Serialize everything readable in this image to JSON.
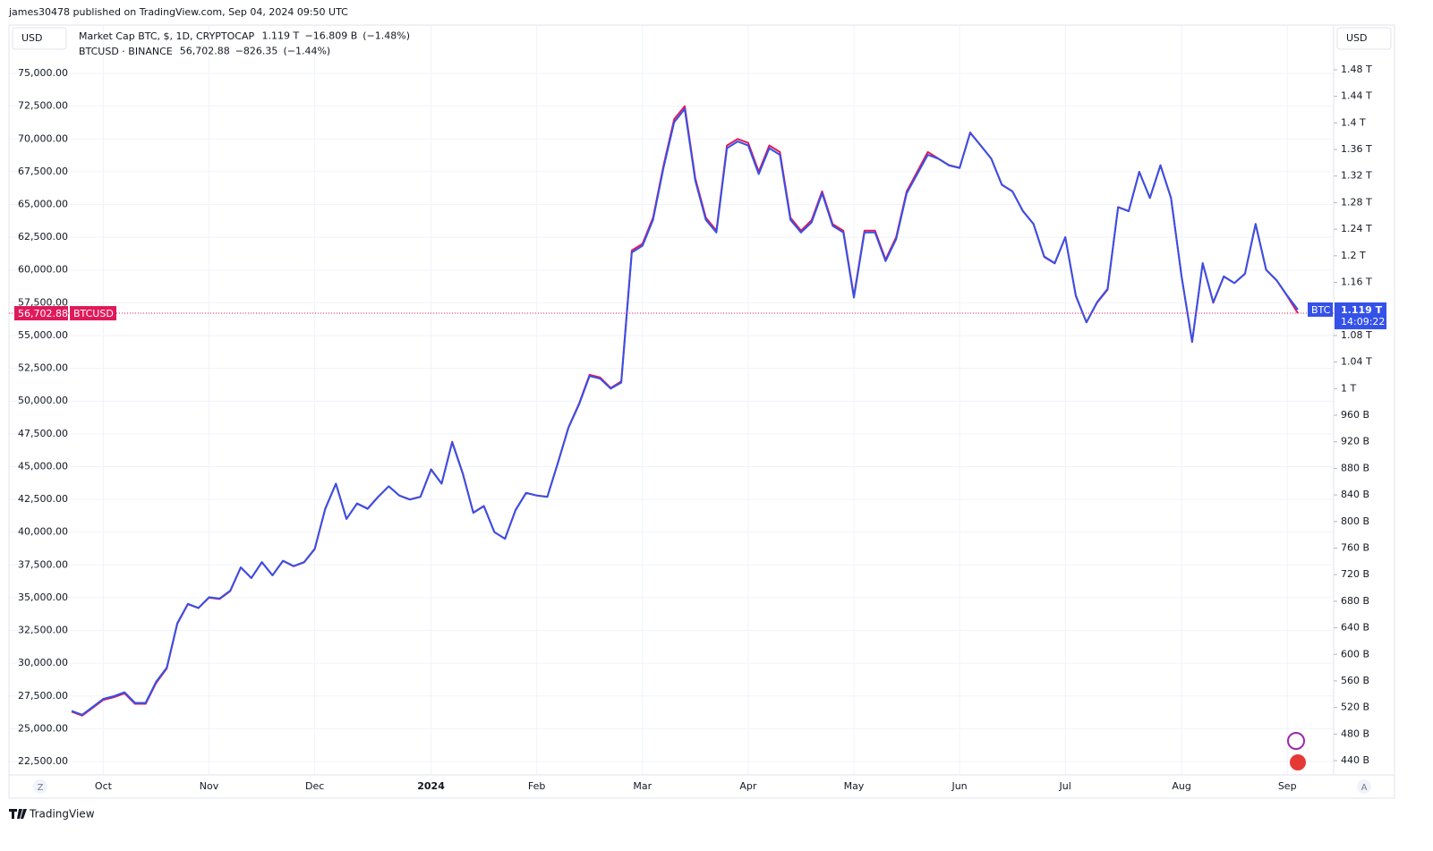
{
  "header": {
    "publisher": "james30478 published on TradingView.com, Sep 04, 2024 09:50 UTC",
    "footer": "TradingView"
  },
  "ui": {
    "left_currency": "USD",
    "right_currency": "USD",
    "left_scale_button": "Z",
    "right_scale_button": "A"
  },
  "legend": {
    "mcap_value": "1.119 T",
    "mcap_change": "−16.809 B",
    "mcap_pct": "(−1.48%)",
    "btc_value": "56,702.88",
    "btc_change": "−826.35",
    "btc_pct": "(−1.44%)"
  },
  "price_tags": {
    "left_value": "56,702.88",
    "left_name": "BTCUSD",
    "right_name": "BTC",
    "right_value": "1.119 T",
    "countdown": "14:09:22"
  },
  "chart_data": {
    "type": "line",
    "grid": true,
    "categories": [
      null,
      null,
      null,
      "Oct",
      null,
      null,
      null,
      null,
      null,
      null,
      null,
      null,
      null,
      "Nov",
      null,
      null,
      null,
      null,
      null,
      null,
      null,
      null,
      null,
      "Dec",
      null,
      null,
      null,
      null,
      null,
      null,
      null,
      null,
      null,
      null,
      "2024",
      null,
      null,
      null,
      null,
      null,
      null,
      null,
      null,
      null,
      "Feb",
      null,
      null,
      null,
      null,
      null,
      null,
      null,
      null,
      null,
      "Mar",
      null,
      null,
      null,
      null,
      null,
      null,
      null,
      null,
      null,
      "Apr",
      null,
      null,
      null,
      null,
      null,
      null,
      null,
      null,
      null,
      "May",
      null,
      null,
      null,
      null,
      null,
      null,
      null,
      null,
      null,
      "Jun",
      null,
      null,
      null,
      null,
      null,
      null,
      null,
      null,
      null,
      "Jul",
      null,
      null,
      null,
      null,
      null,
      null,
      null,
      null,
      null,
      null,
      "Aug",
      null,
      null,
      null,
      null,
      null,
      null,
      null,
      null,
      null,
      "Sep",
      null
    ],
    "ylim": [
      21475,
      78690
    ],
    "yticks": [
      {
        "value": 22500,
        "label": "22,500.00"
      },
      {
        "value": 25000,
        "label": "25,000.00"
      },
      {
        "value": 27500,
        "label": "27,500.00"
      },
      {
        "value": 30000,
        "label": "30,000.00"
      },
      {
        "value": 32500,
        "label": "32,500.00"
      },
      {
        "value": 35000,
        "label": "35,000.00"
      },
      {
        "value": 37500,
        "label": "37,500.00"
      },
      {
        "value": 40000,
        "label": "40,000.00"
      },
      {
        "value": 42500,
        "label": "42,500.00"
      },
      {
        "value": 45000,
        "label": "45,000.00"
      },
      {
        "value": 47500,
        "label": "47,500.00"
      },
      {
        "value": 50000,
        "label": "50,000.00"
      },
      {
        "value": 52500,
        "label": "52,500.00"
      },
      {
        "value": 55000,
        "label": "55,000.00"
      },
      {
        "value": 57500,
        "label": "57,500.00"
      },
      {
        "value": 60000,
        "label": "60,000.00"
      },
      {
        "value": 62500,
        "label": "62,500.00"
      },
      {
        "value": 65000,
        "label": "65,000.00"
      },
      {
        "value": 67500,
        "label": "67,500.00"
      },
      {
        "value": 70000,
        "label": "70,000.00"
      },
      {
        "value": 72500,
        "label": "72,500.00"
      },
      {
        "value": 75000,
        "label": "75,000.00"
      }
    ],
    "y2lim": [
      418.5,
      1547.3
    ],
    "y2ticks": [
      {
        "value": 440,
        "label": "440 B"
      },
      {
        "value": 480,
        "label": "480 B"
      },
      {
        "value": 520,
        "label": "520 B"
      },
      {
        "value": 560,
        "label": "560 B"
      },
      {
        "value": 600,
        "label": "600 B"
      },
      {
        "value": 640,
        "label": "640 B"
      },
      {
        "value": 680,
        "label": "680 B"
      },
      {
        "value": 720,
        "label": "720 B"
      },
      {
        "value": 760,
        "label": "760 B"
      },
      {
        "value": 800,
        "label": "800 B"
      },
      {
        "value": 840,
        "label": "840 B"
      },
      {
        "value": 880,
        "label": "880 B"
      },
      {
        "value": 920,
        "label": "920 B"
      },
      {
        "value": 960,
        "label": "960 B"
      },
      {
        "value": 1000,
        "label": "1 T"
      },
      {
        "value": 1040,
        "label": "1.04 T"
      },
      {
        "value": 1080,
        "label": "1.08 T"
      },
      {
        "value": 1120,
        "label": "1.12 T"
      },
      {
        "value": 1160,
        "label": "1.16 T"
      },
      {
        "value": 1200,
        "label": "1.2 T"
      },
      {
        "value": 1240,
        "label": "1.24 T"
      },
      {
        "value": 1280,
        "label": "1.28 T"
      },
      {
        "value": 1320,
        "label": "1.32 T"
      },
      {
        "value": 1360,
        "label": "1.36 T"
      },
      {
        "value": 1400,
        "label": "1.4 T"
      },
      {
        "value": 1440,
        "label": "1.44 T"
      },
      {
        "value": 1480,
        "label": "1.48 T"
      }
    ],
    "series": [
      {
        "name": "BTCUSD · BINANCE",
        "color": "#e0195a",
        "values": [
          26300,
          26000,
          26600,
          27200,
          27400,
          27700,
          26900,
          26900,
          28500,
          29600,
          33000,
          34500,
          34200,
          35000,
          34900,
          35500,
          37300,
          36500,
          37700,
          36700,
          37800,
          37400,
          37700,
          38700,
          41800,
          43700,
          41000,
          42200,
          41800,
          42700,
          43500,
          42800,
          42500,
          42700,
          44800,
          43700,
          46900,
          44500,
          41500,
          42000,
          40000,
          39500,
          41700,
          43000,
          42800,
          42700,
          45300,
          48000,
          49800,
          52000,
          51800,
          51000,
          51500,
          61500,
          62000,
          64000,
          68000,
          71500,
          72500,
          67000,
          64000,
          63000,
          69500,
          70000,
          69700,
          67500,
          69500,
          69000,
          64000,
          63000,
          63800,
          66000,
          63500,
          63000,
          58000,
          63000,
          63000,
          60800,
          62500,
          66000,
          67500,
          69000,
          68500,
          68000,
          67800,
          70500,
          69500,
          68500,
          66500,
          66000,
          64500,
          63500,
          61000,
          60500,
          62500,
          58000,
          56000,
          57500,
          58500,
          64800,
          64500,
          67500,
          65500,
          68000,
          65500,
          59500,
          54500,
          60500,
          57500,
          59500,
          59000,
          59700,
          63500,
          60000,
          59200,
          58000,
          56702.88
        ]
      },
      {
        "name": "Market Cap BTC, $, 1D, CRYPTOCAP",
        "color": "#3451e8",
        "axis": "y2",
        "values": [
          515,
          509,
          521,
          533,
          537,
          543,
          527,
          527,
          559,
          580,
          647,
          676,
          670,
          686,
          684,
          696,
          731,
          715,
          739,
          719,
          741,
          733,
          739,
          759,
          819,
          857,
          804,
          827,
          819,
          837,
          853,
          839,
          833,
          837,
          878,
          857,
          919,
          872,
          813,
          823,
          784,
          774,
          817,
          843,
          839,
          837,
          888,
          941,
          976,
          1019,
          1015,
          1000,
          1009,
          1205,
          1215,
          1254,
          1333,
          1401,
          1421,
          1313,
          1254,
          1235,
          1362,
          1372,
          1366,
          1323,
          1362,
          1352,
          1254,
          1235,
          1250,
          1294,
          1245,
          1235,
          1137,
          1235,
          1235,
          1192,
          1225,
          1294,
          1323,
          1352,
          1346,
          1336,
          1332,
          1385,
          1366,
          1346,
          1307,
          1297,
          1267,
          1248,
          1199,
          1189,
          1228,
          1140,
          1100,
          1130,
          1150,
          1273,
          1267,
          1326,
          1287,
          1336,
          1287,
          1169,
          1071,
          1189,
          1130,
          1169,
          1159,
          1173,
          1248,
          1179,
          1163,
          1140,
          1119
        ]
      }
    ]
  }
}
